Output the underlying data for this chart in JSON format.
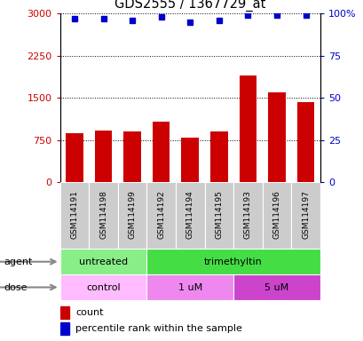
{
  "title": "GDS2555 / 1367729_at",
  "samples": [
    "GSM114191",
    "GSM114198",
    "GSM114199",
    "GSM114192",
    "GSM114194",
    "GSM114195",
    "GSM114193",
    "GSM114196",
    "GSM114197"
  ],
  "bar_values": [
    870,
    920,
    905,
    1080,
    800,
    900,
    1900,
    1600,
    1430
  ],
  "percentile_values": [
    97,
    97,
    96,
    98,
    95,
    96,
    99,
    99,
    99
  ],
  "bar_color": "#cc0000",
  "dot_color": "#0000cc",
  "ylim_left": [
    0,
    3000
  ],
  "ylim_right": [
    0,
    100
  ],
  "yticks_left": [
    0,
    750,
    1500,
    2250,
    3000
  ],
  "ytick_labels_left": [
    "0",
    "750",
    "1500",
    "2250",
    "3000"
  ],
  "yticks_right": [
    0,
    25,
    50,
    75,
    100
  ],
  "ytick_labels_right": [
    "0",
    "25",
    "50",
    "75",
    "100%"
  ],
  "agent_row": [
    {
      "label": "untreated",
      "start": 0,
      "end": 3,
      "color": "#88ee88"
    },
    {
      "label": "trimethyltin",
      "start": 3,
      "end": 9,
      "color": "#44dd44"
    }
  ],
  "dose_row": [
    {
      "label": "control",
      "start": 0,
      "end": 3,
      "color": "#ffbbff"
    },
    {
      "label": "1 uM",
      "start": 3,
      "end": 6,
      "color": "#ee88ee"
    },
    {
      "label": "5 uM",
      "start": 6,
      "end": 9,
      "color": "#cc44cc"
    }
  ],
  "agent_label": "agent",
  "dose_label": "dose",
  "legend_count_color": "#cc0000",
  "legend_dot_color": "#0000cc",
  "legend_count_text": "count",
  "legend_percentile_text": "percentile rank within the sample",
  "background_color": "#ffffff",
  "sample_box_color": "#cccccc",
  "bar_width": 0.6
}
